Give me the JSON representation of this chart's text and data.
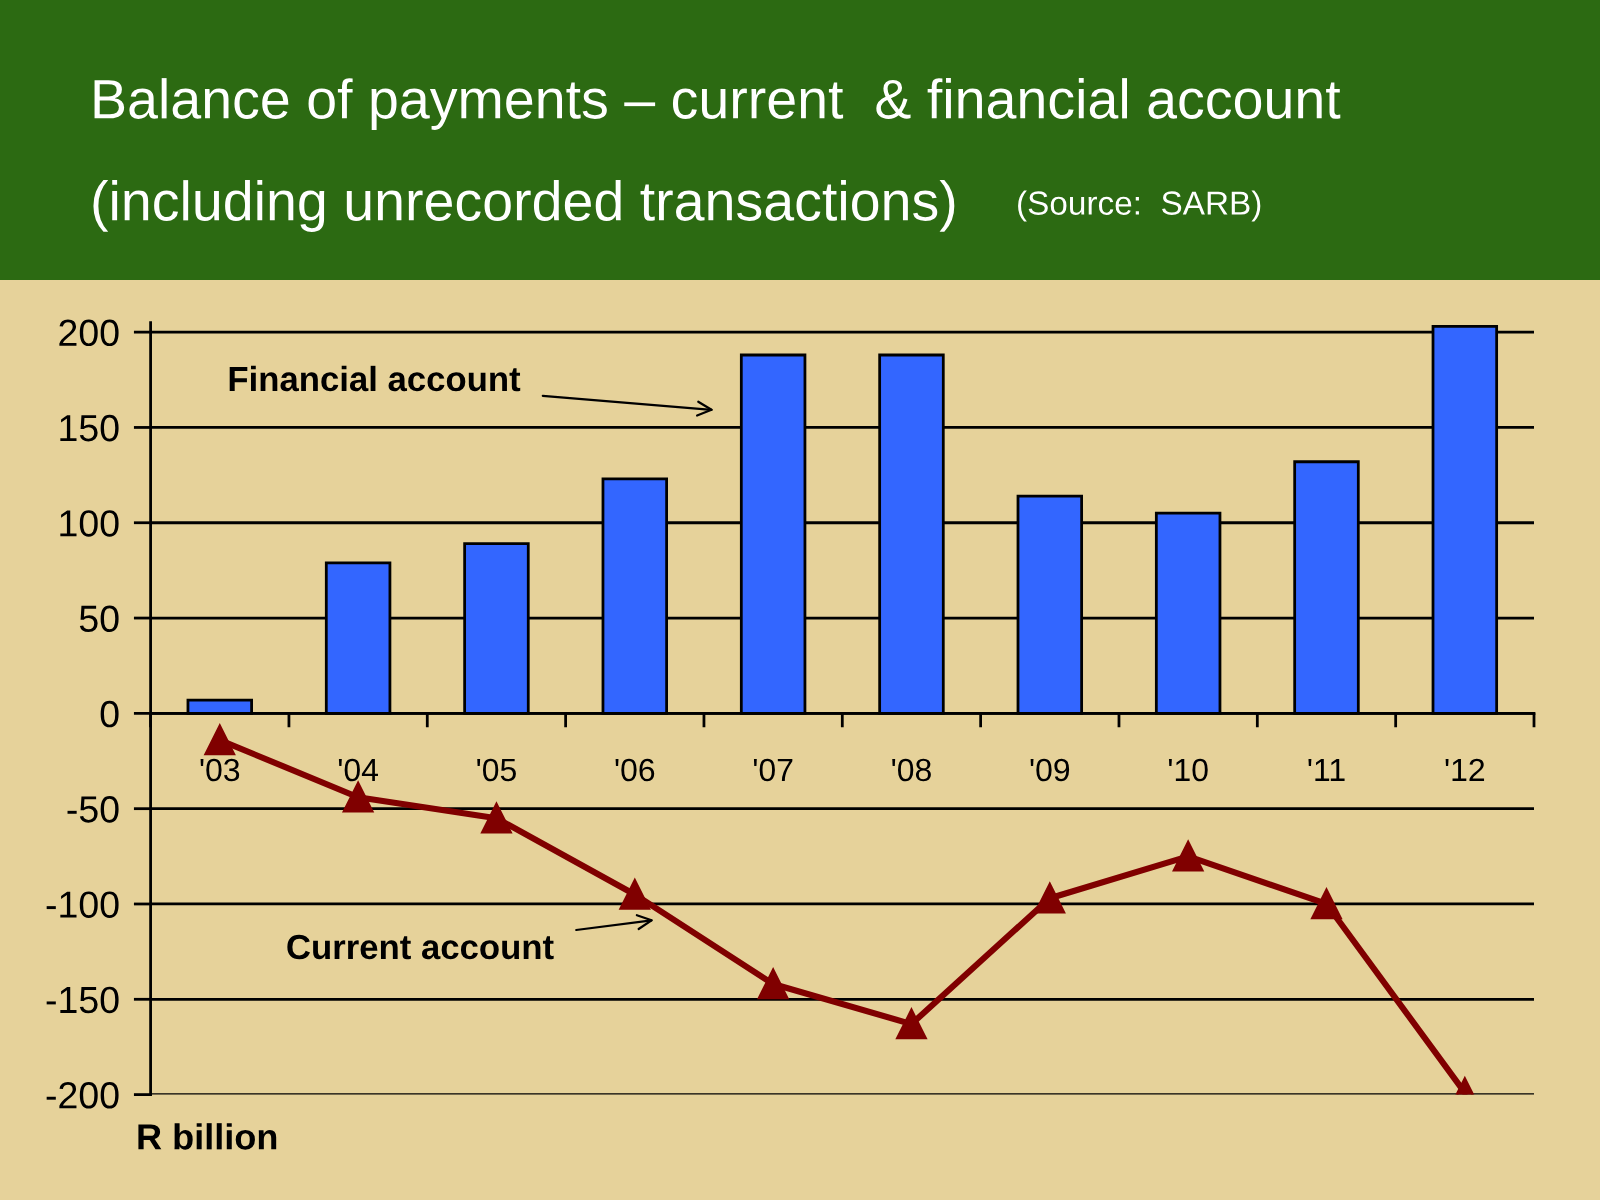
{
  "chart_data": {
    "type": "bar",
    "title": "Balance of payments – current  & financial account",
    "subtitle": "(including unrecorded transactions)",
    "categories": [
      "'03",
      "'04",
      "'05",
      "'06",
      "'07",
      "'08",
      "'09",
      "'10",
      "'11",
      "'12"
    ],
    "series": [
      {
        "color": "#3366ff",
        "values": [
          7,
          79,
          89,
          123,
          188,
          188,
          114,
          105,
          132,
          203
        ]
      },
      {
        "type": "line",
        "color": "#800000",
        "marker": "triangle",
        "line_style": "solid",
        "values": [
          -14,
          -44,
          -55,
          -95,
          -142,
          -163,
          -97,
          -75,
          -100,
          -199
        ]
      }
    ],
    "ylim": [
      -200,
      205
    ],
    "yticks": [
      -200,
      -150,
      -100,
      -50,
      0,
      50,
      100,
      150,
      200
    ],
    "grid": "y",
    "annotations": [
      "(Source:  SARB)",
      "Financial account",
      "Current account",
      "R billion"
    ]
  }
}
